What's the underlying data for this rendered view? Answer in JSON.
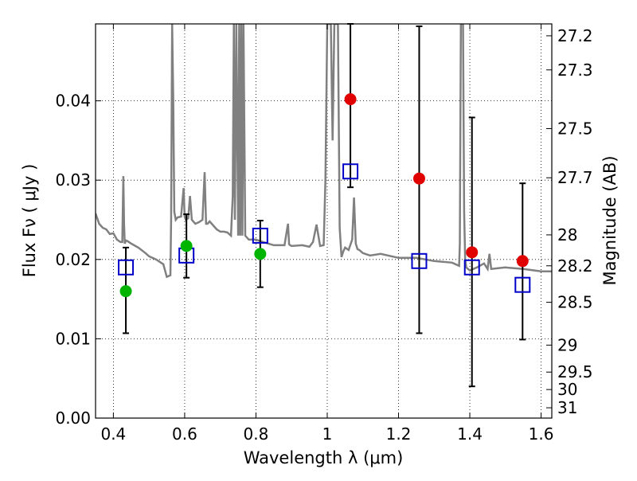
{
  "chart_data": {
    "type": "scatter",
    "xlabel": "Wavelength  λ (μm)",
    "ylabel": "Flux  Fν  ( μJy )",
    "y2label": "Magnitude (AB)",
    "xlim": [
      0.35,
      1.63
    ],
    "ylim": [
      0.0,
      0.0497
    ],
    "x_ticks": [
      0.4,
      0.6,
      0.8,
      1.0,
      1.2,
      1.4,
      1.6
    ],
    "x_tick_labels": [
      "0.4",
      "0.6",
      "0.8",
      "1",
      "1.2",
      "1.4",
      "1.6"
    ],
    "y_ticks": [
      0.0,
      0.01,
      0.02,
      0.03,
      0.04
    ],
    "y_tick_labels": [
      "0.00",
      "0.01",
      "0.02",
      "0.03",
      "0.04"
    ],
    "y2_ticks": [
      {
        "label": "27.2",
        "flux": 0.0482
      },
      {
        "label": "27.3",
        "flux": 0.0439
      },
      {
        "label": "27.5",
        "flux": 0.0365
      },
      {
        "label": "27.7",
        "flux": 0.0303
      },
      {
        "label": "28",
        "flux": 0.0231
      },
      {
        "label": "28.2",
        "flux": 0.0192
      },
      {
        "label": "28.5",
        "flux": 0.0146
      },
      {
        "label": "29",
        "flux": 0.0092
      },
      {
        "label": "29.5",
        "flux": 0.0058
      },
      {
        "label": "30",
        "flux": 0.0036
      },
      {
        "label": "31",
        "flux": 0.0013
      }
    ],
    "grid": true,
    "colors": {
      "model": "#808080",
      "square": "#0000c8",
      "green": "#00b400",
      "red": "#e00000",
      "errorbar": "#000000"
    },
    "model_spectrum": {
      "x": [
        0.35,
        0.36,
        0.37,
        0.38,
        0.39,
        0.4,
        0.41,
        0.42,
        0.425,
        0.428,
        0.43,
        0.432,
        0.435,
        0.44,
        0.45,
        0.47,
        0.49,
        0.5,
        0.52,
        0.54,
        0.55,
        0.56,
        0.562,
        0.565,
        0.568,
        0.571,
        0.575,
        0.58,
        0.59,
        0.597,
        0.6,
        0.603,
        0.61,
        0.615,
        0.62,
        0.63,
        0.64,
        0.65,
        0.656,
        0.66,
        0.664,
        0.67,
        0.68,
        0.69,
        0.7,
        0.71,
        0.72,
        0.73,
        0.735,
        0.738,
        0.741,
        0.745,
        0.75,
        0.753,
        0.756,
        0.759,
        0.762,
        0.765,
        0.77,
        0.78,
        0.8,
        0.82,
        0.85,
        0.88,
        0.89,
        0.893,
        0.896,
        0.9,
        0.93,
        0.95,
        0.96,
        0.97,
        0.98,
        0.99,
        0.995,
        1.0,
        1.005,
        1.01,
        1.015,
        1.02,
        1.025,
        1.03,
        1.035,
        1.04,
        1.045,
        1.05,
        1.06,
        1.07,
        1.075,
        1.08,
        1.085,
        1.09,
        1.1,
        1.12,
        1.15,
        1.2,
        1.25,
        1.3,
        1.35,
        1.37,
        1.372,
        1.375,
        1.378,
        1.381,
        1.384,
        1.387,
        1.39,
        1.4,
        1.42,
        1.44,
        1.45,
        1.455,
        1.46,
        1.5,
        1.55,
        1.6,
        1.63
      ],
      "y": [
        0.0258,
        0.0245,
        0.024,
        0.0238,
        0.0232,
        0.0233,
        0.0225,
        0.0222,
        0.0222,
        0.0305,
        0.0245,
        0.022,
        0.0224,
        0.0223,
        0.022,
        0.0215,
        0.0208,
        0.0204,
        0.02,
        0.0194,
        0.0178,
        0.018,
        0.025,
        0.05,
        0.04,
        0.026,
        0.025,
        0.0253,
        0.0254,
        0.029,
        0.0254,
        0.025,
        0.0252,
        0.028,
        0.025,
        0.0245,
        0.0247,
        0.025,
        0.031,
        0.0245,
        0.0245,
        0.0248,
        0.0243,
        0.0238,
        0.0235,
        0.0235,
        0.0234,
        0.023,
        0.028,
        0.05,
        0.025,
        0.05,
        0.023,
        0.05,
        0.023,
        0.05,
        0.023,
        0.05,
        0.023,
        0.0225,
        0.0225,
        0.0222,
        0.0218,
        0.0218,
        0.0245,
        0.0219,
        0.0218,
        0.0217,
        0.0218,
        0.0216,
        0.0222,
        0.0244,
        0.0217,
        0.0218,
        0.03,
        0.05,
        0.05,
        0.05,
        0.035,
        0.05,
        0.05,
        0.05,
        0.024,
        0.0203,
        0.021,
        0.0215,
        0.0212,
        0.0225,
        0.0278,
        0.022,
        0.0213,
        0.0212,
        0.0208,
        0.0205,
        0.0207,
        0.0202,
        0.0202,
        0.0198,
        0.0196,
        0.0192,
        0.022,
        0.05,
        0.05,
        0.05,
        0.026,
        0.02,
        0.019,
        0.0186,
        0.019,
        0.0195,
        0.0188,
        0.0207,
        0.0188,
        0.019,
        0.0188,
        0.0185,
        0.0185
      ]
    },
    "series": [
      {
        "marker": "square",
        "x": [
          0.435,
          0.605,
          0.812,
          1.065,
          1.258,
          1.406,
          1.548
        ],
        "y": [
          0.019,
          0.0205,
          0.023,
          0.0311,
          0.0198,
          0.019,
          0.0168
        ]
      },
      {
        "marker": "circle-green",
        "x": [
          0.435,
          0.605,
          0.812
        ],
        "y": [
          0.016,
          0.0217,
          0.0207
        ]
      },
      {
        "marker": "circle-red",
        "x": [
          1.065,
          1.258,
          1.406,
          1.548
        ],
        "y": [
          0.0402,
          0.0302,
          0.0209,
          0.0198
        ]
      }
    ],
    "errorbars": [
      {
        "x": 0.435,
        "low": 0.0107,
        "high": 0.0215
      },
      {
        "x": 0.605,
        "low": 0.0177,
        "high": 0.0257
      },
      {
        "x": 0.812,
        "low": 0.0165,
        "high": 0.0249
      },
      {
        "x": 1.065,
        "low": 0.0291,
        "high": 0.0497
      },
      {
        "x": 1.258,
        "low": 0.0107,
        "high": 0.0494
      },
      {
        "x": 1.406,
        "low": 0.004,
        "high": 0.0379
      },
      {
        "x": 1.548,
        "low": 0.0099,
        "high": 0.0296
      }
    ]
  }
}
